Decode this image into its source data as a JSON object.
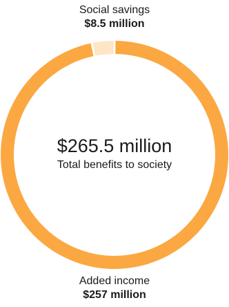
{
  "chart_data": {
    "type": "pie",
    "variant": "donut",
    "center_value": "$265.5 million",
    "center_label": "Total benefits to society",
    "slices": [
      {
        "name": "Social savings",
        "value_label": "$8.5 million",
        "value": 8.5,
        "color": "#fde5c6"
      },
      {
        "name": "Added income",
        "value_label": "$257 million",
        "value": 257,
        "color": "#fba842"
      }
    ]
  }
}
